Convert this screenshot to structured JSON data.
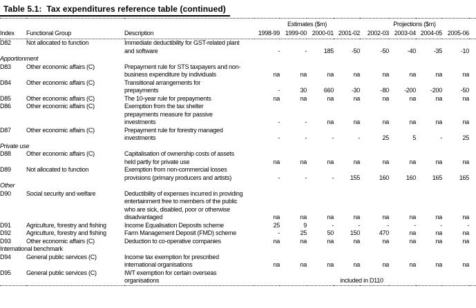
{
  "title": "Table 5.1:  Tax expenditures reference table (continued)",
  "table": {
    "estimates_label": "Estimates ($m)",
    "projections_label": "Projections ($m)",
    "col_index": "Index",
    "col_group": "Functional Group",
    "col_desc": "Description",
    "years": [
      "1998-99",
      "1999-00",
      "2000-01",
      "2001-02",
      "2002-03",
      "2003-04",
      "2004-05",
      "2005-06"
    ],
    "rows": [
      {
        "type": "data",
        "index": "D82",
        "group": "Not allocated to function",
        "desc": "Immediate deductibility for GST-related plant\nand software",
        "values": [
          "-",
          "-",
          "185",
          "-50",
          "-50",
          "-40",
          "-35",
          "-10"
        ]
      },
      {
        "type": "section",
        "label": "Apportionment",
        "italic": true
      },
      {
        "type": "data",
        "index": "D83",
        "group": "Other economic affairs (C)",
        "desc": "Prepayment rule for STS taxpayers and non-\nbusiness expenditure by individuals",
        "values": [
          "na",
          "na",
          "na",
          "na",
          "na",
          "na",
          "na",
          "na"
        ]
      },
      {
        "type": "data",
        "index": "D84",
        "group": "Other economic affairs (C)",
        "desc": "Transitional arrangements for\nprepayments",
        "values": [
          "-",
          "30",
          "660",
          "-30",
          "-80",
          "-200",
          "-200",
          "-50"
        ]
      },
      {
        "type": "data",
        "index": "D85",
        "group": "Other economic affairs (C)",
        "desc": "The 10-year rule for prepayments",
        "values": [
          "na",
          "na",
          "na",
          "na",
          "na",
          "na",
          "na",
          "na"
        ]
      },
      {
        "type": "data",
        "index": "D86",
        "group": "Other economic affairs (C)",
        "desc": "Exemption from the tax shelter\nprepayments measure for passive\ninvestments",
        "values": [
          "-",
          "-",
          "na",
          "na",
          "na",
          "na",
          "na",
          "na"
        ]
      },
      {
        "type": "data",
        "index": "D87",
        "group": "Other economic affairs (C)",
        "desc": "Prepayment rule for forestry managed\ninvestments",
        "values": [
          "-",
          "-",
          "-",
          "-",
          "25",
          "5",
          "-",
          "25"
        ]
      },
      {
        "type": "section",
        "label": "Private use",
        "italic": true
      },
      {
        "type": "data",
        "index": "D88",
        "group": "Other economic affairs (C)",
        "desc": "Capitalisation of ownership costs of assets\nheld partly for private use",
        "values": [
          "na",
          "na",
          "na",
          "na",
          "na",
          "na",
          "na",
          "na"
        ]
      },
      {
        "type": "data",
        "index": "D89",
        "group": "Not allocated to function",
        "desc": "Exemption from non-commercial losses\nprovisions (primary producers and artists)",
        "values": [
          "-",
          "-",
          "-",
          "155",
          "160",
          "160",
          "165",
          "165"
        ]
      },
      {
        "type": "section",
        "label": "Other",
        "italic": true
      },
      {
        "type": "data",
        "index": "D90",
        "group": "Social security and welfare",
        "desc": "Deductibility of expenses incurred in providing\nentertainment free to members of the public\nwho are sick, disabled, poor or otherwise\ndisadvantaged",
        "values": [
          "na",
          "na",
          "na",
          "na",
          "na",
          "na",
          "na",
          "na"
        ]
      },
      {
        "type": "data",
        "index": "D91",
        "group": "Agriculture, forestry and fishing",
        "desc": "Income Equalisation Deposits scheme",
        "values": [
          "25",
          "9",
          "-",
          "-",
          "-",
          "-",
          "-",
          "-"
        ]
      },
      {
        "type": "data",
        "index": "D92",
        "group": "Agriculture, forestry and fishing",
        "desc": "Farm Management Deposit (FMD) scheme",
        "values": [
          "-",
          "25",
          "50",
          "150",
          "470",
          "na",
          "na",
          "na"
        ]
      },
      {
        "type": "data",
        "index": "D93",
        "group": "Other economic affairs (C)",
        "desc": "Deduction to co-operative companies",
        "values": [
          "na",
          "na",
          "na",
          "na",
          "na",
          "na",
          "na",
          "na"
        ]
      },
      {
        "type": "section",
        "label": "International benchmark",
        "italic": false
      },
      {
        "type": "data",
        "index": "D94",
        "group": "General public services (C)",
        "desc": "Income tax exemption for prescribed\ninternational organisations",
        "values": [
          "na",
          "na",
          "na",
          "na",
          "na",
          "na",
          "na",
          "na"
        ]
      },
      {
        "type": "data",
        "index": "D95",
        "group": "General public services (C)",
        "desc": "IWT exemption for certain overseas\norganisations",
        "note": "included in D110"
      }
    ]
  }
}
